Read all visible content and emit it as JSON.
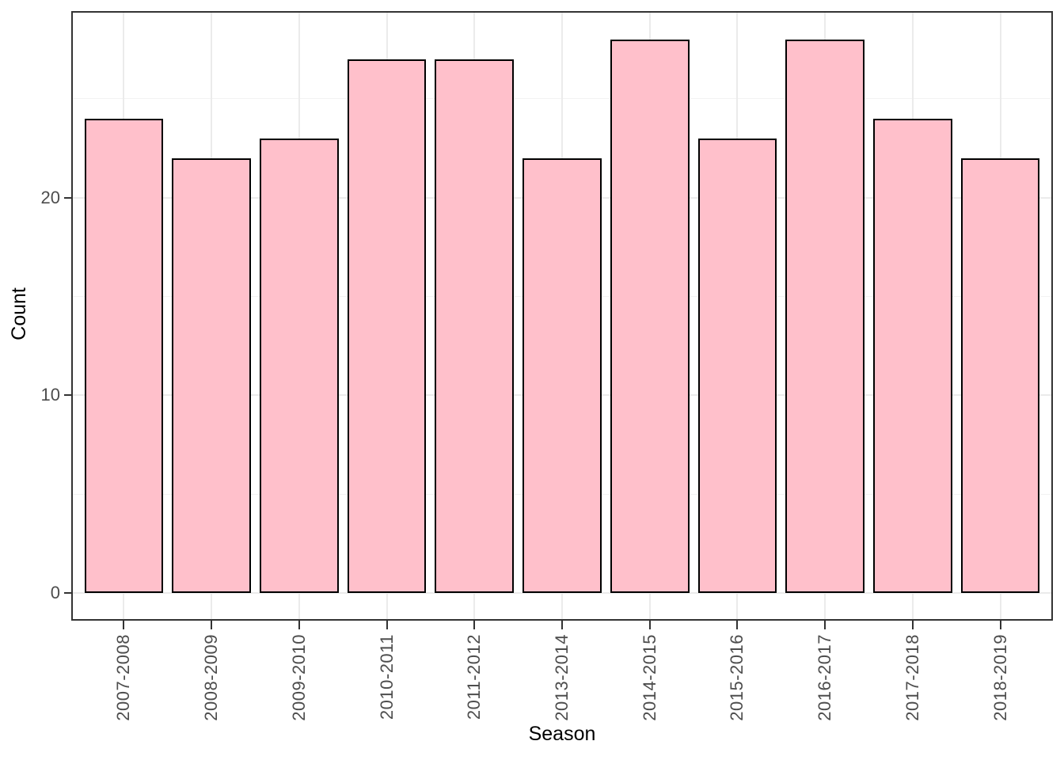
{
  "chart_data": {
    "type": "bar",
    "title": "",
    "xlabel": "Season",
    "ylabel": "Count",
    "categories": [
      "2007-2008",
      "2008-2009",
      "2009-2010",
      "2010-2011",
      "2011-2012",
      "2013-2014",
      "2014-2015",
      "2015-2016",
      "2016-2017",
      "2017-2018",
      "2018-2019"
    ],
    "values": [
      24,
      22,
      23,
      27,
      27,
      22,
      28,
      23,
      28,
      24,
      22
    ],
    "ylim": [
      0,
      29.4
    ],
    "yticks": [
      0,
      10,
      20
    ],
    "yticks_minor": [
      5,
      15,
      25
    ],
    "grid": "on",
    "legend": "none",
    "colors": {
      "bar_fill": "#FFC0CB",
      "bar_stroke": "#000000",
      "panel_border": "#333333",
      "grid_major": "#EBEBEB",
      "grid_minor": "#F2F2F2",
      "tick_mark": "#333333",
      "tick_label": "#4D4D4D",
      "axis_title": "#000000",
      "background": "#FFFFFF"
    }
  }
}
